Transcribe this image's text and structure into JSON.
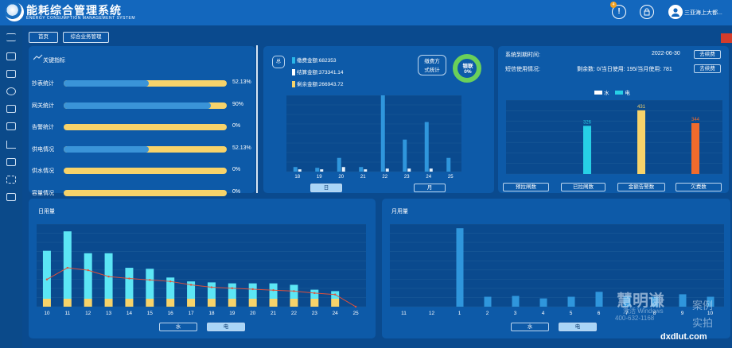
{
  "app": {
    "title": "能耗综合管理系统",
    "subtitle": "ENERGY CONSUMPTION MANAGEMENT SYSTEM",
    "notification_count": "4",
    "user_name": "三亚海上大都..."
  },
  "breadcrumbs": [
    "首页",
    "综合业务管理"
  ],
  "key_metrics": {
    "title": "关键指标",
    "rows": [
      {
        "label": "抄表统计",
        "value": "52.13%",
        "fraction": 0.5213
      },
      {
        "label": "网关统计",
        "value": "90%",
        "fraction": 0.9
      },
      {
        "label": "告警统计",
        "value": "0%",
        "fraction": 0
      },
      {
        "label": "供电情况",
        "value": "52.13%",
        "fraction": 0.5213
      },
      {
        "label": "供水情况",
        "value": "0%",
        "fraction": 0
      },
      {
        "label": "容量情况",
        "value": "0%",
        "fraction": 0
      }
    ]
  },
  "payment": {
    "total_label": "总",
    "items": [
      {
        "label": "缴费金额:682353",
        "color": "#29b6e8"
      },
      {
        "label": "结算金额:373341.14",
        "color": "#ffffff"
      },
      {
        "label": "剩余金额:266943.72",
        "color": "#f7d36a"
      }
    ],
    "method_label_1": "缴费方",
    "method_label_2": "式统计",
    "donut_label_1": "银联",
    "donut_label_2": "0%",
    "tab_day": "日",
    "tab_month": "月"
  },
  "sms": {
    "expire_label": "系统到期时间:",
    "expire_date": "2022-06-30",
    "renew_btn": "去续费",
    "usage_label": "短信使用情况:",
    "usage_text": "剩余数: 0/当日使用: 195/当月使用: 781",
    "renew_btn2": "去续费",
    "legend_water": "水",
    "legend_power": "电",
    "btn_prepay": "预拉闸数",
    "btn_switched": "已拉闸数",
    "btn_reminder": "金额告警数",
    "btn_arrears": "欠费数"
  },
  "daily": {
    "title": "日用量",
    "tab_water": "水",
    "tab_power": "电"
  },
  "monthly": {
    "title": "月用量",
    "tab_water": "水",
    "tab_power": "电"
  },
  "watermark": {
    "brand": "慧明谦",
    "line2": "案例",
    "line3": "实拍",
    "activate": "激活 Windows",
    "phone": "400-632-1168",
    "site": "dxdlut.com"
  },
  "colors": {
    "accent": "#29b6e8",
    "cyan": "#5ce6f5",
    "yellow": "#f7d36a",
    "orange": "#f06b2c",
    "bg": "#0a4a8e"
  },
  "chart_data": [
    {
      "type": "bar",
      "name": "payment_stats",
      "categories": [
        "18",
        "19",
        "20",
        "21",
        "22",
        "23",
        "24",
        "25"
      ],
      "series": [
        {
          "values": [
            6,
            5,
            18,
            6,
            100,
            42,
            65,
            18
          ]
        },
        {
          "values": [
            3,
            3,
            6,
            3,
            4,
            4,
            4,
            0
          ]
        }
      ]
    },
    {
      "type": "bar",
      "name": "sms_stats",
      "categories": [
        "预拉闸数",
        "已拉闸数",
        "金额告警数",
        "欠费数"
      ],
      "series": [
        {
          "name": "电",
          "values": [
            0,
            326,
            431,
            344
          ],
          "colors": [
            "#27d0e6",
            "#27d0e6",
            "#f7d36a",
            "#f06b2c"
          ]
        }
      ]
    },
    {
      "type": "bar",
      "name": "daily_usage",
      "categories": [
        "10",
        "11",
        "12",
        "13",
        "14",
        "15",
        "16",
        "17",
        "18",
        "19",
        "20",
        "21",
        "22",
        "23",
        "24",
        "25"
      ],
      "series": [
        {
          "name": "电",
          "values": [
            115,
            155,
            110,
            110,
            80,
            78,
            60,
            52,
            50,
            48,
            48,
            48,
            45,
            35,
            32,
            0
          ]
        },
        {
          "name": "水",
          "values": [
            20,
            20,
            20,
            20,
            20,
            20,
            20,
            20,
            20,
            20,
            20,
            20,
            20,
            20,
            20,
            0
          ]
        }
      ],
      "line": [
        56,
        80,
        75,
        62,
        58,
        55,
        52,
        45,
        40,
        38,
        36,
        34,
        32,
        28,
        25,
        0
      ],
      "ylim": [
        0,
        170
      ]
    },
    {
      "type": "bar",
      "name": "monthly_usage",
      "categories": [
        "11",
        "12",
        "1",
        "2",
        "3",
        "4",
        "5",
        "6",
        "7",
        "8",
        "9",
        "10"
      ],
      "series": [
        {
          "values": [
            0,
            0,
            95,
            12,
            13,
            10,
            12,
            18,
            13,
            12,
            15,
            12
          ]
        }
      ]
    }
  ]
}
